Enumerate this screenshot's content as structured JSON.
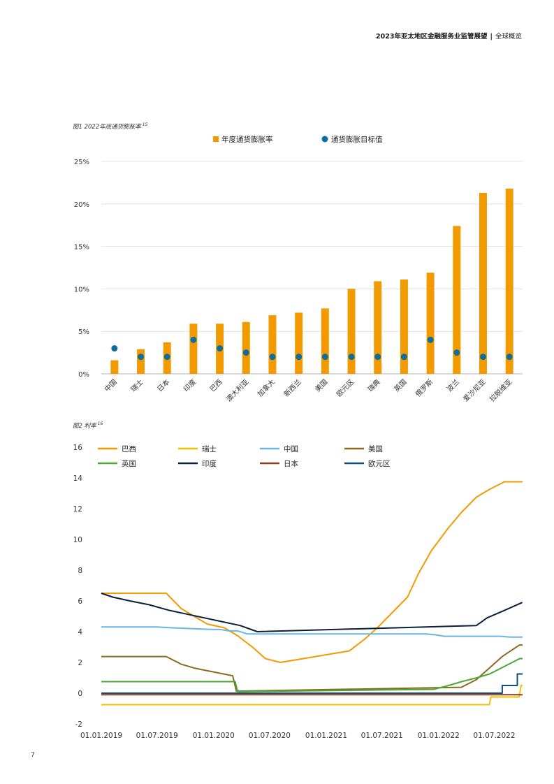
{
  "header": {
    "title": "2023年亚太地区金融服务业监管展望",
    "separator": "|",
    "section": "全球概览"
  },
  "figure1": {
    "caption": "图1 2022年底通货膨胀率",
    "ref": "15"
  },
  "figure2": {
    "caption": "图2 利率",
    "ref": "16"
  },
  "page_number": "7",
  "colors": {
    "bar": "#f29a00",
    "dot": "#0b6e9e",
    "grid": "#dcdcdc",
    "axis": "#333333"
  },
  "chart_data": [
    {
      "type": "bar",
      "title": "",
      "legend_placement": "top",
      "grid": true,
      "ylim": [
        0,
        25
      ],
      "yticks": [
        "0%",
        "5%",
        "10%",
        "15%",
        "20%",
        "25%"
      ],
      "categories": [
        "中国",
        "瑞士",
        "日本",
        "印度",
        "巴西",
        "澳大利亚",
        "加拿大",
        "新西兰",
        "美国",
        "欧元区",
        "瑞典",
        "英国",
        "俄罗斯",
        "波兰",
        "爱沙尼亚",
        "拉脱维亚"
      ],
      "series": [
        {
          "name": "年度通货膨胀率",
          "type": "bar",
          "color": "#f29a00",
          "values": [
            1.6,
            2.9,
            3.7,
            5.9,
            5.9,
            6.1,
            6.9,
            7.2,
            7.7,
            10.0,
            10.9,
            11.1,
            11.9,
            17.4,
            21.3,
            21.8
          ]
        },
        {
          "name": "通货膨胀目标值",
          "type": "scatter",
          "color": "#0b6e9e",
          "values": [
            3,
            2,
            2,
            4,
            3,
            2.5,
            2,
            2,
            2,
            2,
            2,
            2,
            4,
            2.5,
            2,
            2
          ]
        }
      ]
    },
    {
      "type": "line",
      "title": "",
      "legend_placement": "top",
      "grid": false,
      "ylim": [
        -2,
        16
      ],
      "yticks": [
        "-2",
        "0",
        "2",
        "4",
        "6",
        "8",
        "10",
        "12",
        "14",
        "16"
      ],
      "xlim": [
        "2019-01-01",
        "2022-10-01"
      ],
      "xticks": [
        "01.01.2019",
        "01.07.2019",
        "01.01.2020",
        "01.07.2020",
        "01.01.2021",
        "01.07.2021",
        "01.01.2022",
        "01.07.2022"
      ],
      "series": [
        {
          "name": "巴西",
          "color": "#f29a00",
          "points": [
            [
              "2019-01-01",
              6.5
            ],
            [
              "2019-07-31",
              6.5
            ],
            [
              "2019-09-18",
              5.5
            ],
            [
              "2019-10-30",
              5.0
            ],
            [
              "2019-12-11",
              4.5
            ],
            [
              "2020-02-05",
              4.25
            ],
            [
              "2020-03-18",
              3.75
            ],
            [
              "2020-05-06",
              3.0
            ],
            [
              "2020-06-17",
              2.25
            ],
            [
              "2020-08-05",
              2.0
            ],
            [
              "2021-03-17",
              2.75
            ],
            [
              "2021-05-05",
              3.5
            ],
            [
              "2021-06-16",
              4.25
            ],
            [
              "2021-08-04",
              5.25
            ],
            [
              "2021-09-22",
              6.25
            ],
            [
              "2021-10-27",
              7.75
            ],
            [
              "2021-12-08",
              9.25
            ],
            [
              "2022-02-02",
              10.75
            ],
            [
              "2022-03-16",
              11.75
            ],
            [
              "2022-05-04",
              12.75
            ],
            [
              "2022-06-15",
              13.25
            ],
            [
              "2022-08-03",
              13.75
            ],
            [
              "2022-10-01",
              13.75
            ]
          ]
        },
        {
          "name": "瑞士",
          "color": "#f2c200",
          "points": [
            [
              "2019-01-01",
              -0.75
            ],
            [
              "2022-06-15",
              -0.75
            ],
            [
              "2022-06-20",
              -0.25
            ],
            [
              "2022-09-20",
              -0.25
            ],
            [
              "2022-09-26",
              0.5
            ],
            [
              "2022-10-01",
              0.5
            ]
          ]
        },
        {
          "name": "中国",
          "color": "#6bb6e0",
          "points": [
            [
              "2019-01-01",
              4.31
            ],
            [
              "2019-07-01",
              4.31
            ],
            [
              "2019-08-20",
              4.25
            ],
            [
              "2019-10-21",
              4.2
            ],
            [
              "2019-12-20",
              4.15
            ],
            [
              "2020-01-20",
              4.15
            ],
            [
              "2020-02-20",
              4.05
            ],
            [
              "2020-03-20",
              4.05
            ],
            [
              "2020-04-20",
              3.85
            ],
            [
              "2021-11-20",
              3.85
            ],
            [
              "2021-12-20",
              3.8
            ],
            [
              "2022-01-20",
              3.7
            ],
            [
              "2022-07-20",
              3.7
            ],
            [
              "2022-08-22",
              3.65
            ],
            [
              "2022-10-01",
              3.65
            ]
          ]
        },
        {
          "name": "美国",
          "color": "#8b6a1e",
          "points": [
            [
              "2019-01-01",
              2.38
            ],
            [
              "2019-07-31",
              2.38
            ],
            [
              "2019-09-18",
              1.88
            ],
            [
              "2019-10-30",
              1.63
            ],
            [
              "2020-03-03",
              1.13
            ],
            [
              "2020-03-15",
              0.13
            ],
            [
              "2022-03-16",
              0.38
            ],
            [
              "2022-05-04",
              0.88
            ],
            [
              "2022-06-15",
              1.63
            ],
            [
              "2022-07-27",
              2.38
            ],
            [
              "2022-09-21",
              3.13
            ],
            [
              "2022-10-01",
              3.13
            ]
          ]
        },
        {
          "name": "英国",
          "color": "#4aa636",
          "points": [
            [
              "2019-01-01",
              0.75
            ],
            [
              "2020-03-11",
              0.75
            ],
            [
              "2020-03-19",
              0.1
            ],
            [
              "2021-12-16",
              0.25
            ],
            [
              "2022-02-03",
              0.5
            ],
            [
              "2022-03-17",
              0.75
            ],
            [
              "2022-05-05",
              1.0
            ],
            [
              "2022-06-16",
              1.25
            ],
            [
              "2022-08-04",
              1.75
            ],
            [
              "2022-09-22",
              2.25
            ],
            [
              "2022-10-01",
              2.25
            ]
          ]
        },
        {
          "name": "印度",
          "color": "#0a1f3c",
          "points": [
            [
              "2019-01-01",
              6.5
            ],
            [
              "2019-02-07",
              6.25
            ],
            [
              "2019-04-04",
              6.0
            ],
            [
              "2019-06-06",
              5.75
            ],
            [
              "2019-08-07",
              5.4
            ],
            [
              "2019-10-04",
              5.15
            ],
            [
              "2020-03-27",
              4.4
            ],
            [
              "2020-05-22",
              4.0
            ],
            [
              "2022-05-04",
              4.4
            ],
            [
              "2022-06-08",
              4.9
            ],
            [
              "2022-08-05",
              5.4
            ],
            [
              "2022-09-30",
              5.9
            ]
          ]
        },
        {
          "name": "日本",
          "color": "#8b3a1a",
          "points": [
            [
              "2019-01-01",
              -0.1
            ],
            [
              "2022-10-01",
              -0.1
            ]
          ]
        },
        {
          "name": "欧元区",
          "color": "#0b4f7a",
          "points": [
            [
              "2019-01-01",
              0.0
            ],
            [
              "2022-07-27",
              0.0
            ],
            [
              "2022-07-27",
              0.5
            ],
            [
              "2022-09-14",
              0.5
            ],
            [
              "2022-09-14",
              1.25
            ],
            [
              "2022-10-01",
              1.25
            ]
          ]
        }
      ]
    }
  ]
}
